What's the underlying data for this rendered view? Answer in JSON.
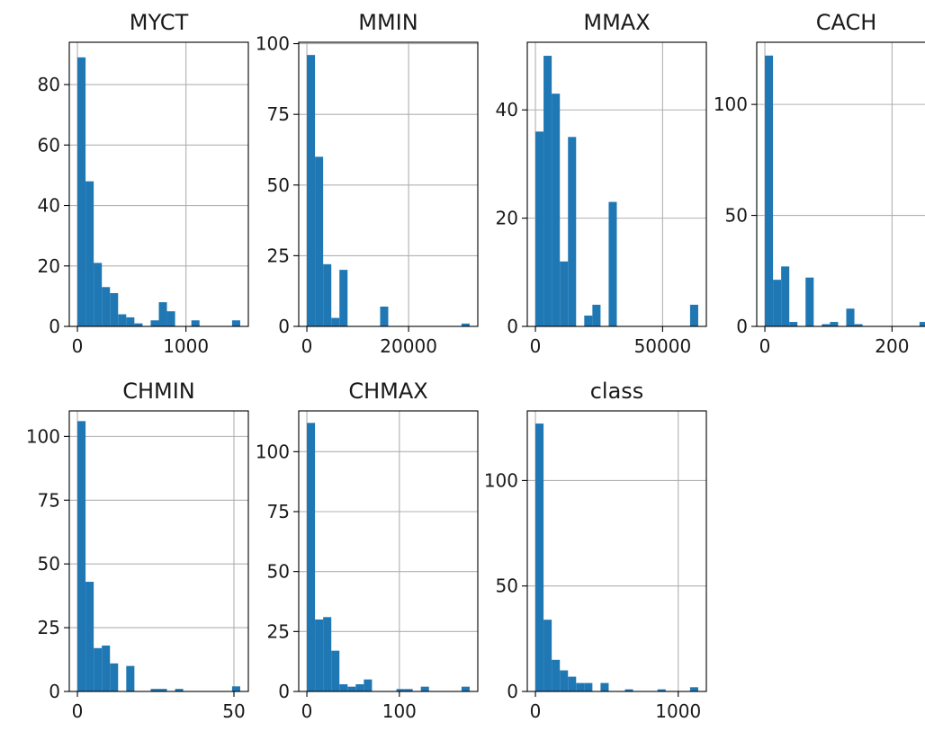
{
  "figure": {
    "background": "#ffffff",
    "bar_color": "#1f77b4",
    "grid_color": "#b0b0b0",
    "layout": "2x4 grid of histograms"
  },
  "chart_data": [
    {
      "type": "bar",
      "title": "MYCT",
      "bins": 20,
      "grid": true,
      "xlim": [
        -75,
        1575
      ],
      "ylim": [
        0,
        94
      ],
      "xticks": [
        0,
        1000
      ],
      "xtick_labels": [
        "0",
        "1000"
      ],
      "yticks": [
        0,
        20,
        40,
        60,
        80
      ],
      "ytick_labels": [
        "0",
        "20",
        "40",
        "60",
        "80"
      ],
      "bin_edges": [
        0,
        75,
        150,
        225,
        300,
        375,
        450,
        525,
        600,
        675,
        750,
        825,
        900,
        975,
        1050,
        1125,
        1200,
        1275,
        1350,
        1425,
        1500
      ],
      "values": [
        89,
        48,
        21,
        13,
        11,
        4,
        3,
        1,
        0,
        2,
        8,
        5,
        0,
        0,
        2,
        0,
        0,
        0,
        0,
        2
      ]
    },
    {
      "type": "bar",
      "title": "MMIN",
      "bins": 20,
      "grid": true,
      "xlim": [
        -1600,
        33600
      ],
      "ylim": [
        0,
        100.5
      ],
      "xticks": [
        0,
        20000
      ],
      "xtick_labels": [
        "0",
        "20000"
      ],
      "yticks": [
        0,
        25,
        50,
        75,
        100
      ],
      "ytick_labels": [
        "0",
        "25",
        "50",
        "75",
        "100"
      ],
      "bin_edges": [
        0,
        1600,
        3200,
        4800,
        6400,
        8000,
        9600,
        11200,
        12800,
        14400,
        16000,
        17600,
        19200,
        20800,
        22400,
        24000,
        25600,
        27200,
        28800,
        30400,
        32000
      ],
      "values": [
        96,
        60,
        22,
        3,
        20,
        0,
        0,
        0,
        0,
        7,
        0,
        0,
        0,
        0,
        0,
        0,
        0,
        0,
        0,
        1
      ]
    },
    {
      "type": "bar",
      "title": "MMAX",
      "bins": 20,
      "grid": true,
      "xlim": [
        -3200,
        67200
      ],
      "ylim": [
        0,
        52.5
      ],
      "xticks": [
        0,
        50000
      ],
      "xtick_labels": [
        "0",
        "50000"
      ],
      "yticks": [
        0,
        20,
        40
      ],
      "ytick_labels": [
        "0",
        "20",
        "40"
      ],
      "bin_edges": [
        0,
        3200,
        6400,
        9600,
        12800,
        16000,
        19200,
        22400,
        25600,
        28800,
        32000,
        35200,
        38400,
        41600,
        44800,
        48000,
        51200,
        54400,
        57600,
        60800,
        64000
      ],
      "values": [
        36,
        50,
        43,
        12,
        35,
        0,
        2,
        4,
        0,
        23,
        0,
        0,
        0,
        0,
        0,
        0,
        0,
        0,
        0,
        4
      ]
    },
    {
      "type": "bar",
      "title": "CACH",
      "bins": 20,
      "grid": true,
      "xlim": [
        -12.8,
        268.8
      ],
      "ylim": [
        0,
        128
      ],
      "xticks": [
        0,
        200
      ],
      "xtick_labels": [
        "0",
        "200"
      ],
      "yticks": [
        0,
        50,
        100
      ],
      "ytick_labels": [
        "0",
        "50",
        "100"
      ],
      "bin_edges": [
        0,
        12.8,
        25.6,
        38.4,
        51.2,
        64,
        76.8,
        89.6,
        102.4,
        115.2,
        128,
        140.8,
        153.6,
        166.4,
        179.2,
        192,
        204.8,
        217.6,
        230.4,
        243.2,
        256
      ],
      "values": [
        122,
        21,
        27,
        2,
        0,
        22,
        0,
        1,
        2,
        0,
        8,
        1,
        0,
        0,
        0,
        0,
        0,
        0,
        0,
        2
      ]
    },
    {
      "type": "bar",
      "title": "CHMIN",
      "bins": 20,
      "grid": true,
      "xlim": [
        -2.6,
        54.6
      ],
      "ylim": [
        0,
        110
      ],
      "xticks": [
        0,
        50
      ],
      "xtick_labels": [
        "0",
        "50"
      ],
      "yticks": [
        0,
        25,
        50,
        75,
        100
      ],
      "ytick_labels": [
        "0",
        "25",
        "50",
        "75",
        "100"
      ],
      "bin_edges": [
        0,
        2.6,
        5.2,
        7.8,
        10.4,
        13,
        15.6,
        18.2,
        20.8,
        23.4,
        26,
        28.6,
        31.2,
        33.8,
        36.4,
        39,
        41.6,
        44.2,
        46.8,
        49.4,
        52
      ],
      "values": [
        106,
        43,
        17,
        18,
        11,
        0,
        10,
        0,
        0,
        1,
        1,
        0,
        1,
        0,
        0,
        0,
        0,
        0,
        0,
        2
      ]
    },
    {
      "type": "bar",
      "title": "CHMAX",
      "bins": 20,
      "grid": true,
      "xlim": [
        -8.8,
        184.8
      ],
      "ylim": [
        0,
        117
      ],
      "xticks": [
        0,
        100
      ],
      "xtick_labels": [
        "0",
        "100"
      ],
      "yticks": [
        0,
        25,
        50,
        75,
        100
      ],
      "ytick_labels": [
        "0",
        "25",
        "50",
        "75",
        "100"
      ],
      "bin_edges": [
        0,
        8.8,
        17.6,
        26.4,
        35.2,
        44,
        52.8,
        61.6,
        70.4,
        79.2,
        88,
        96.8,
        105.6,
        114.4,
        123.2,
        132,
        140.8,
        149.6,
        158.4,
        167.2,
        176
      ],
      "values": [
        112,
        30,
        31,
        17,
        3,
        2,
        3,
        5,
        0,
        0,
        0,
        1,
        1,
        0,
        2,
        0,
        0,
        0,
        0,
        2
      ]
    },
    {
      "type": "bar",
      "title": "class",
      "bins": 20,
      "grid": true,
      "xlim": [
        -57,
        1197
      ],
      "ylim": [
        0,
        133
      ],
      "xticks": [
        0,
        1000
      ],
      "xtick_labels": [
        "0",
        "1000"
      ],
      "yticks": [
        0,
        50,
        100
      ],
      "ytick_labels": [
        "0",
        "50",
        "100"
      ],
      "bin_edges": [
        0,
        57,
        114,
        171,
        228,
        285,
        342,
        399,
        456,
        513,
        570,
        627,
        684,
        741,
        798,
        855,
        912,
        969,
        1026,
        1083,
        1140
      ],
      "values": [
        127,
        34,
        15,
        10,
        7,
        4,
        4,
        0,
        4,
        0,
        0,
        1,
        0,
        0,
        0,
        1,
        0,
        0,
        0,
        2
      ]
    }
  ]
}
